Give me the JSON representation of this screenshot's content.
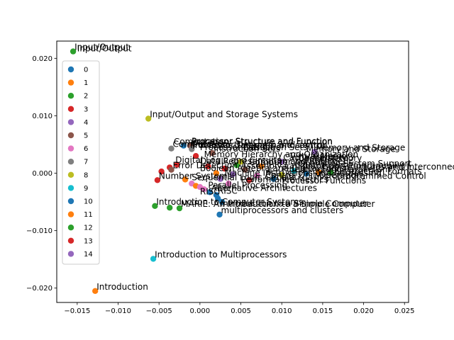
{
  "chart_data": {
    "type": "scatter",
    "title": "",
    "xlabel": "",
    "ylabel": "",
    "xlim": [
      -0.0175,
      0.0255
    ],
    "ylim": [
      -0.0225,
      0.023
    ],
    "xticks": [
      -0.015,
      -0.01,
      -0.005,
      0.0,
      0.005,
      0.01,
      0.015,
      0.02,
      0.025
    ],
    "xtick_labels": [
      "−0.015",
      "−0.010",
      "−0.005",
      "0.000",
      "0.005",
      "0.010",
      "0.015",
      "0.020",
      "0.025"
    ],
    "yticks": [
      -0.02,
      -0.01,
      0.0,
      0.01,
      0.02
    ],
    "ytick_labels": [
      "−0.020",
      "−0.010",
      "0.000",
      "0.010",
      "0.020"
    ],
    "grid": false,
    "legend_position": "upper-left",
    "series": [
      {
        "name": "0",
        "color": "#1f77b4"
      },
      {
        "name": "1",
        "color": "#ff7f0e"
      },
      {
        "name": "2",
        "color": "#2ca02c"
      },
      {
        "name": "3",
        "color": "#d62728"
      },
      {
        "name": "4",
        "color": "#9467bd"
      },
      {
        "name": "5",
        "color": "#8c564b"
      },
      {
        "name": "6",
        "color": "#e377c2"
      },
      {
        "name": "7",
        "color": "#7f7f7f"
      },
      {
        "name": "8",
        "color": "#bcbd22"
      },
      {
        "name": "9",
        "color": "#17becf"
      },
      {
        "name": "10",
        "color": "#1f77b4"
      },
      {
        "name": "11",
        "color": "#ff7f0e"
      },
      {
        "name": "12",
        "color": "#2ca02c"
      },
      {
        "name": "13",
        "color": "#d62728"
      },
      {
        "name": "14",
        "color": "#9467bd"
      }
    ],
    "points": [
      {
        "x": -0.0155,
        "y": 0.0212,
        "s": 12,
        "label": "Input/Output"
      },
      {
        "x": -0.0063,
        "y": 0.0095,
        "s": 8,
        "label": "Input/Output and Storage Systems"
      },
      {
        "x": -0.0035,
        "y": 0.0043,
        "s": 7,
        "label": "Computation"
      },
      {
        "x": -0.002,
        "y": 0.0048,
        "s": 10
      },
      {
        "x": -0.0012,
        "y": 0.0048,
        "s": 5,
        "label": "Processor Structure and Function"
      },
      {
        "x": -0.001,
        "y": 0.0042,
        "s": 7,
        "label": "Processor Datapath and control"
      },
      {
        "x": 0.0015,
        "y": 0.0035,
        "s": 5,
        "label": "Instruction Sets"
      },
      {
        "x": 0.014,
        "y": 0.0037,
        "s": 4,
        "label": "Memory and Storage"
      },
      {
        "x": 0.01,
        "y": 0.002,
        "s": 4,
        "label": "Cache Memory"
      },
      {
        "x": -0.0005,
        "y": 0.003,
        "s": 3
      },
      {
        "x": -0.0028,
        "y": 0.0015,
        "s": 13
      },
      {
        "x": -0.0037,
        "y": 0.001,
        "s": 3
      },
      {
        "x": -0.0047,
        "y": 0.0003,
        "s": 13
      },
      {
        "x": -0.0052,
        "y": -0.0012,
        "s": 3,
        "label": "Number Systems"
      },
      {
        "x": -0.0035,
        "y": 0.0006,
        "s": 5,
        "label": "Error Detection"
      },
      {
        "x": -0.0018,
        "y": -0.0011,
        "s": 11
      },
      {
        "x": -0.001,
        "y": -0.0018,
        "s": 6
      },
      {
        "x": -0.0005,
        "y": -0.0022,
        "s": 11
      },
      {
        "x": 0.0,
        "y": -0.0024,
        "s": 6
      },
      {
        "x": 0.0005,
        "y": -0.0028,
        "s": 6
      },
      {
        "x": 0.0012,
        "y": -0.0033,
        "s": 0,
        "label": "Alternative Architectures"
      },
      {
        "x": 0.002,
        "y": -0.0038,
        "s": 10,
        "label": "RISC"
      },
      {
        "x": 0.0022,
        "y": -0.0044,
        "s": 0
      },
      {
        "x": 0.0027,
        "y": -0.005,
        "s": 10
      },
      {
        "x": 0.0024,
        "y": -0.0072,
        "s": 0,
        "label": "multiprocessors and clusters"
      },
      {
        "x": -0.0055,
        "y": -0.0057,
        "s": 2,
        "label": "Introduction to Computer Systems"
      },
      {
        "x": -0.0037,
        "y": -0.006,
        "s": 2
      },
      {
        "x": -0.0025,
        "y": -0.0061,
        "s": 12,
        "label": "MARIE: An Introduction to a Simple Computer"
      },
      {
        "x": -0.0057,
        "y": -0.0149,
        "s": 9,
        "label": "Introduction to Multiprocessors"
      },
      {
        "x": -0.0128,
        "y": -0.0205,
        "s": 11,
        "label": "Introduction"
      },
      {
        "x": 0.002,
        "y": 0.0,
        "s": 1
      },
      {
        "x": 0.003,
        "y": 0.0008,
        "s": 3
      },
      {
        "x": 0.004,
        "y": -0.0002,
        "s": 4
      },
      {
        "x": 0.0055,
        "y": 0.0006,
        "s": 5
      },
      {
        "x": 0.007,
        "y": -0.0004,
        "s": 6
      },
      {
        "x": 0.0085,
        "y": 0.0003,
        "s": 7
      },
      {
        "x": 0.01,
        "y": -0.0003,
        "s": 8
      },
      {
        "x": 0.0115,
        "y": 0.0004,
        "s": 9
      },
      {
        "x": 0.013,
        "y": -0.0001,
        "s": 10
      },
      {
        "x": 0.0145,
        "y": 0.0002,
        "s": 11
      },
      {
        "x": 0.016,
        "y": 0.0001,
        "s": 12
      },
      {
        "x": 0.001,
        "y": 0.0012,
        "s": 13
      },
      {
        "x": 0.0025,
        "y": -0.001,
        "s": 14
      },
      {
        "x": 0.0045,
        "y": 0.0014,
        "s": 2
      },
      {
        "x": 0.006,
        "y": -0.0012,
        "s": 3
      },
      {
        "x": 0.0075,
        "y": 0.0012,
        "s": 1
      },
      {
        "x": 0.009,
        "y": -0.001,
        "s": 0
      },
      {
        "x": 0.0035,
        "y": -0.0018,
        "s": 6
      },
      {
        "x": 0.005,
        "y": 0.002,
        "s": 8
      }
    ],
    "extra_labels": [
      {
        "x": -0.015,
        "y": 0.0212,
        "text": "Input/Output"
      },
      {
        "x": -0.0032,
        "y": 0.005,
        "text": "Computation"
      },
      {
        "x": -0.001,
        "y": 0.005,
        "text": "Processor Structure and Function"
      },
      {
        "x": -0.0012,
        "y": 0.0044,
        "text": "Processor Datapath and control"
      },
      {
        "x": 0.0,
        "y": 0.004,
        "text": "Processor Design"
      },
      {
        "x": 0.005,
        "y": 0.004,
        "text": "Instruction Sets"
      },
      {
        "x": 0.013,
        "y": 0.0037,
        "text": "Memory and Storage"
      },
      {
        "x": 0.0005,
        "y": 0.0028,
        "text": "Memory Hierarchy and Organization"
      },
      {
        "x": 0.011,
        "y": 0.0025,
        "text": "Virtual Memory"
      },
      {
        "x": 0.012,
        "y": 0.0021,
        "text": "Cache Memory"
      },
      {
        "x": -0.003,
        "y": 0.0018,
        "text": "Digital Logic and Circuits"
      },
      {
        "x": 0.0,
        "y": 0.0016,
        "text": "Data Representation and Arithmetic"
      },
      {
        "x": 0.006,
        "y": 0.0014,
        "text": "Computer Arithmetic"
      },
      {
        "x": 0.012,
        "y": 0.0012,
        "text": "Operating System Support"
      },
      {
        "x": 0.005,
        "y": 0.0008,
        "text": "Assembly Language and Programming"
      },
      {
        "x": 0.015,
        "y": 0.0006,
        "text": "Bus Structures and Interconnection"
      },
      {
        "x": 0.0,
        "y": 0.0004,
        "text": "Boolean Algebra and Digital Logic"
      },
      {
        "x": 0.01,
        "y": 0.0002,
        "text": "Pipelining and Parallelism"
      },
      {
        "x": 0.017,
        "y": -0.0002,
        "text": "Instruction Formats"
      },
      {
        "x": 0.003,
        "y": -0.0004,
        "text": "Machine Instructions and Addressing"
      },
      {
        "x": 0.008,
        "y": -0.0008,
        "text": "Control Unit Operation"
      },
      {
        "x": 0.014,
        "y": -0.001,
        "text": "Microprogrammed Control"
      },
      {
        "x": -0.001,
        "y": -0.0012,
        "text": "Sequential Logic Circuits"
      },
      {
        "x": 0.005,
        "y": -0.0016,
        "text": "Performance Metrics"
      },
      {
        "x": 0.01,
        "y": -0.0018,
        "text": "Processor Functions"
      },
      {
        "x": 0.001,
        "y": -0.0026,
        "text": "Parallel Processing"
      },
      {
        "x": 0.0,
        "y": -0.0037,
        "text": "RISC"
      },
      {
        "x": 0.0025,
        "y": -0.0058,
        "text": "Introduction to a Simple Computer"
      }
    ]
  }
}
